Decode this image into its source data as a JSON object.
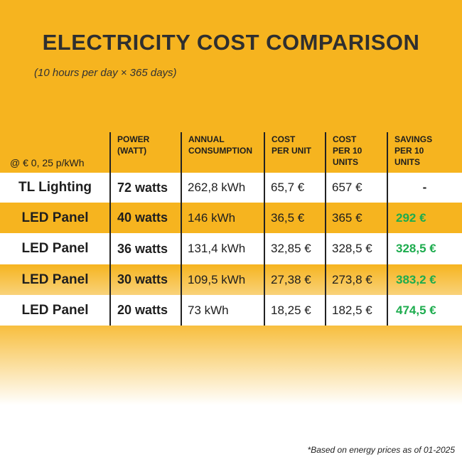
{
  "title": "ELECTRICITY COST COMPARISON",
  "subtitle": "(10 hours per day × 365 days)",
  "table": {
    "header": [
      "@ € 0, 25 p/kWh",
      [
        "POWER",
        "(WATT)"
      ],
      [
        "ANNUAL",
        "CONSUMPTION"
      ],
      [
        "COST",
        "PER UNIT"
      ],
      [
        "COST",
        "PER 10",
        "UNITS"
      ],
      [
        "SAVINGS",
        "PER 10",
        "UNITS"
      ]
    ],
    "rows": [
      [
        "TL Lighting",
        "72 watts",
        "262,8 kWh",
        "65,7 €",
        "657 €",
        "-"
      ],
      [
        "LED Panel",
        "40 watts",
        "146 kWh",
        "36,5 €",
        "365 €",
        "292 €"
      ],
      [
        "LED Panel",
        "36 watts",
        "131,4 kWh",
        "32,85 €",
        "328,5 €",
        "328,5 €"
      ],
      [
        "LED Panel",
        "30 watts",
        "109,5 kWh",
        "27,38 €",
        "273,8 €",
        "383,2 €"
      ],
      [
        "LED Panel",
        "20 watts",
        "73 kWh",
        "18,25 €",
        "182,5 €",
        "474,5 €"
      ]
    ]
  },
  "footnote": "*Based on energy prices as of 01-2025"
}
